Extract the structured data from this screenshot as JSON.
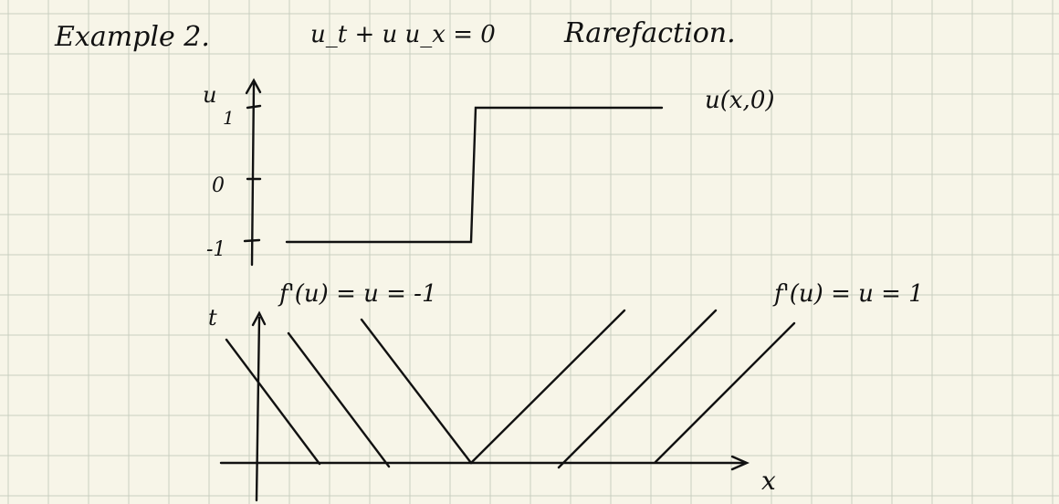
{
  "colors": {
    "paper": "#f7f5e8",
    "grid": "#c9cfc0",
    "ink": "#111111"
  },
  "header": {
    "title": "Example 2.",
    "equation": "u_t + u u_x = 0",
    "subject": "Rarefaction."
  },
  "initial_condition_plot": {
    "axis_label_u": "u",
    "tick_1": "1",
    "tick_0": "0",
    "tick_neg1": "-1",
    "curve_label": "u(x,0)"
  },
  "characteristics_plot": {
    "axis_label_t": "t",
    "axis_label_x": "x",
    "left_speed_label": "f'(u) = u = -1",
    "right_speed_label": "f'(u) = u = 1"
  }
}
